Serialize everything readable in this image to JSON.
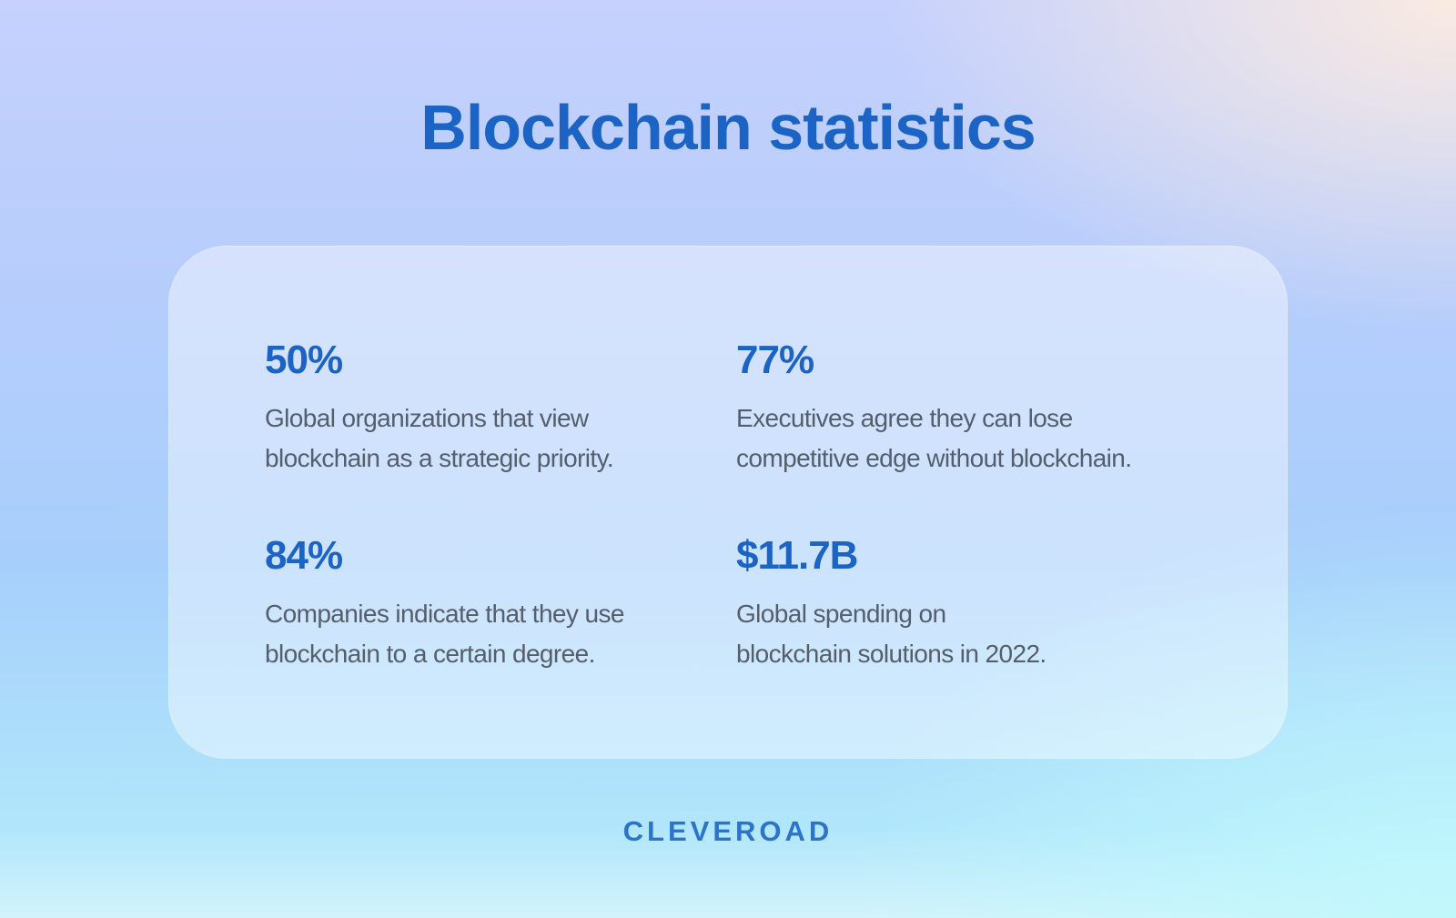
{
  "header": {
    "title": "Blockchain statistics"
  },
  "stats": [
    {
      "value": "50%",
      "line1": "Global organizations that view",
      "line2": "blockchain as a strategic priority."
    },
    {
      "value": "77%",
      "line1": "Executives agree they can lose",
      "line2": "competitive edge without blockchain."
    },
    {
      "value": "84%",
      "line1": "Companies indicate that they use",
      "line2": "blockchain to a certain degree."
    },
    {
      "value": "$11.7B",
      "line1": "Global spending on",
      "line2": "blockchain solutions in 2022."
    }
  ],
  "footer": {
    "brand": "CLEVEROAD"
  },
  "colors": {
    "accent": "#1b63c4",
    "body_text": "#555e6b",
    "brand": "#2c74c9"
  }
}
